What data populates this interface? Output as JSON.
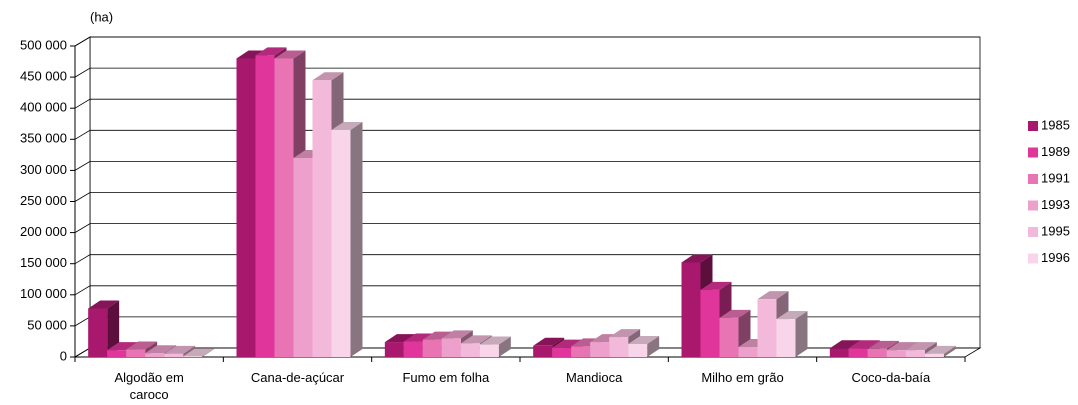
{
  "chart_data": {
    "type": "bar",
    "y_label": "(ha)",
    "categories": [
      "Algodão em caroco",
      "Cana-de-açúcar",
      "Fumo em folha",
      "Mandioca",
      "Milho em grão",
      "Coco-da-baía"
    ],
    "series": [
      {
        "name": "1985",
        "color": "#a8196e",
        "values": [
          78000,
          480000,
          24000,
          18000,
          152000,
          14000
        ]
      },
      {
        "name": "1989",
        "color": "#e0359b",
        "values": [
          11000,
          485000,
          25000,
          15000,
          108000,
          14000
        ]
      },
      {
        "name": "1991",
        "color": "#e874b4",
        "values": [
          12000,
          480000,
          28000,
          17000,
          63000,
          13000
        ]
      },
      {
        "name": "1993",
        "color": "#eea0cc",
        "values": [
          6000,
          320000,
          30000,
          24000,
          16000,
          11000
        ]
      },
      {
        "name": "1995",
        "color": "#f2b9da",
        "values": [
          5000,
          445000,
          22000,
          32000,
          93000,
          11000
        ]
      },
      {
        "name": "1996",
        "color": "#f8d5e8",
        "values": [
          1000,
          365000,
          20000,
          21000,
          61000,
          5000
        ]
      }
    ],
    "ylim": [
      0,
      500000
    ],
    "yticks": [
      0,
      {
        "value": 50000,
        "label": "50 000"
      },
      {
        "value": 100000,
        "label": "100 000"
      },
      {
        "value": 150000,
        "label": "150 000"
      },
      {
        "value": 200000,
        "label": "200 000"
      },
      {
        "value": 250000,
        "label": "250 000"
      },
      {
        "value": 300000,
        "label": "300 000"
      },
      {
        "value": 350000,
        "label": "350 000"
      },
      {
        "value": 400000,
        "label": "400 000"
      },
      {
        "value": 450000,
        "label": "450 000"
      },
      {
        "value": 500000,
        "label": "500 000"
      }
    ],
    "grid": true,
    "legend": "right"
  }
}
